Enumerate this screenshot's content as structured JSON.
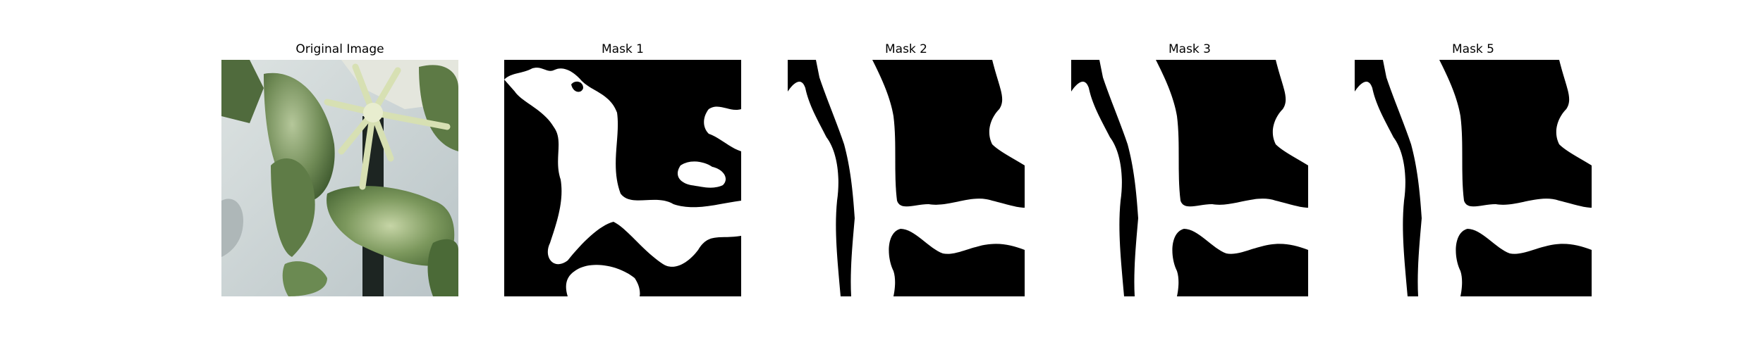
{
  "panels": [
    {
      "title": "Original Image",
      "icon": "plant-photo"
    },
    {
      "title": "Mask 1",
      "icon": "segmentation-mask"
    },
    {
      "title": "Mask 2",
      "icon": "segmentation-mask"
    },
    {
      "title": "Mask 3",
      "icon": "segmentation-mask"
    },
    {
      "title": "Mask 5",
      "icon": "segmentation-mask"
    }
  ],
  "colors": {
    "mask_background": "#000000",
    "mask_foreground": "#ffffff",
    "wall": "#c9d1d3",
    "leaf_dark": "#4f6b3c",
    "leaf_light": "#a9bf8a",
    "stem_pale": "#d7e0b3"
  }
}
